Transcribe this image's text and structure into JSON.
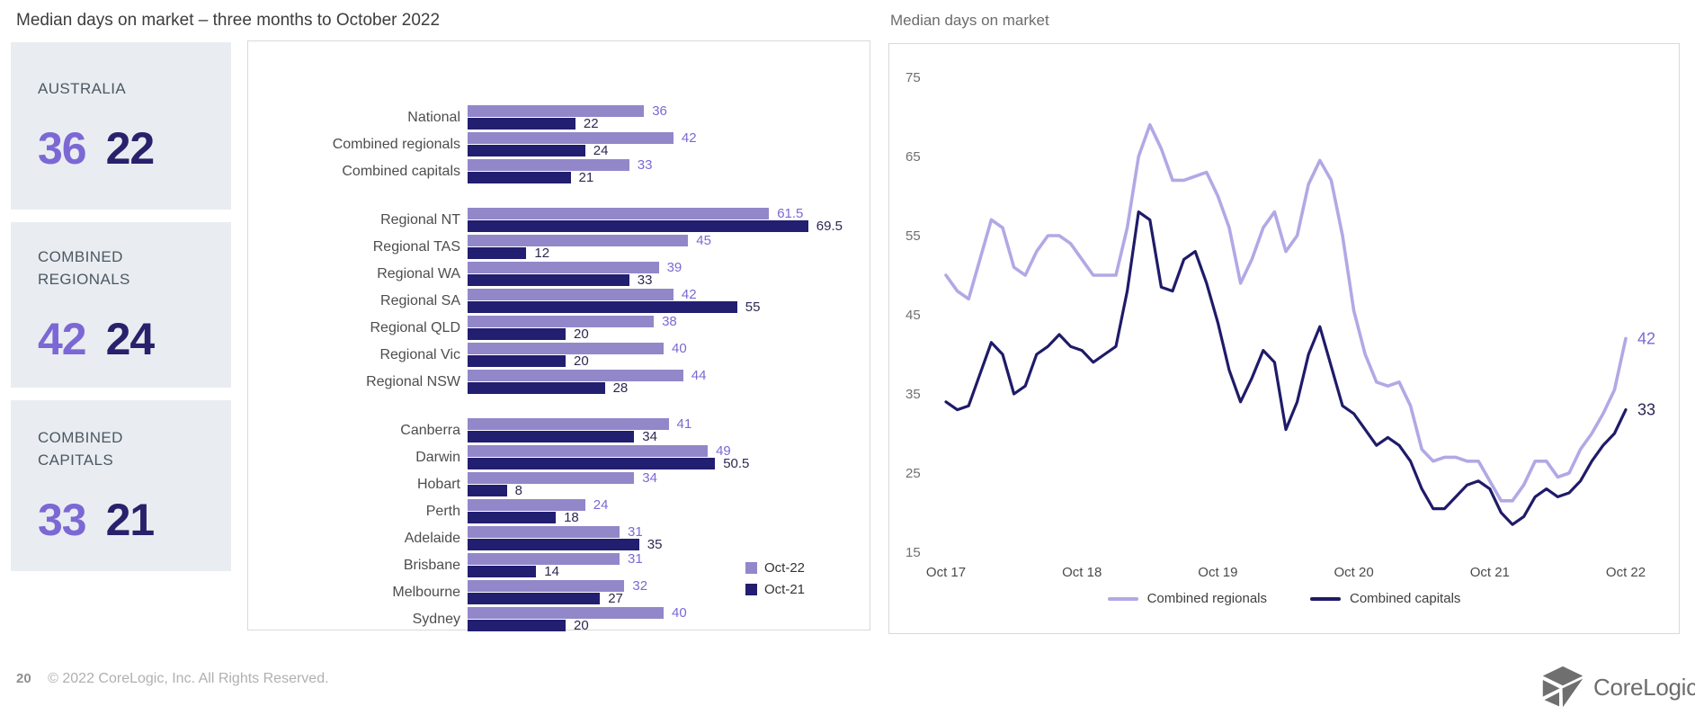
{
  "page": {
    "bar_section_title": "Median days on market – three months to October 2022",
    "line_section_title": "Median days on market",
    "footer_page_number": "20",
    "footer_copyright": "© 2022 CoreLogic, Inc. All Rights Reserved.",
    "logo_text": "CoreLogic",
    "logo_tm": "’"
  },
  "summary_cards": [
    {
      "label": "AUSTRALIA",
      "oct22": "36",
      "oct21": "22"
    },
    {
      "label": "COMBINED REGIONALS",
      "oct22": "42",
      "oct21": "24"
    },
    {
      "label": "COMBINED CAPITALS",
      "oct22": "33",
      "oct21": "21"
    }
  ],
  "colors": {
    "bar_oct22": "#9287c9",
    "bar_oct21": "#221e70",
    "line_regionals": "#b1a9e5",
    "line_capitals": "#1f1b69",
    "value_purple": "#7c68d4",
    "value_navy": "#2c2950",
    "card_bg": "#e9edf1",
    "card_num_purple": "#7c68d4",
    "card_num_navy": "#29216b"
  },
  "chart_data": [
    {
      "type": "bar",
      "orientation": "horizontal",
      "title": "Median days on market – three months to October 2022",
      "series_names": [
        "Oct-22",
        "Oct-21"
      ],
      "xlim": [
        0,
        75
      ],
      "grid": false,
      "legend_position": "right-bottom",
      "legend": [
        "Oct-22",
        "Oct-21"
      ],
      "groups": [
        {
          "rows": [
            {
              "label": "National",
              "oct22": 36,
              "oct21": 22
            },
            {
              "label": "Combined regionals",
              "oct22": 42,
              "oct21": 24
            },
            {
              "label": "Combined capitals",
              "oct22": 33,
              "oct21": 21
            }
          ]
        },
        {
          "rows": [
            {
              "label": "Regional NT",
              "oct22": 61.5,
              "oct21": 69.5
            },
            {
              "label": "Regional TAS",
              "oct22": 45,
              "oct21": 12
            },
            {
              "label": "Regional WA",
              "oct22": 39,
              "oct21": 33
            },
            {
              "label": "Regional SA",
              "oct22": 42,
              "oct21": 55
            },
            {
              "label": "Regional QLD",
              "oct22": 38,
              "oct21": 20
            },
            {
              "label": "Regional Vic",
              "oct22": 40,
              "oct21": 20
            },
            {
              "label": "Regional NSW",
              "oct22": 44,
              "oct21": 28
            }
          ]
        },
        {
          "rows": [
            {
              "label": "Canberra",
              "oct22": 41,
              "oct21": 34
            },
            {
              "label": "Darwin",
              "oct22": 49,
              "oct21": 50.5
            },
            {
              "label": "Hobart",
              "oct22": 34,
              "oct21": 8
            },
            {
              "label": "Perth",
              "oct22": 24,
              "oct21": 18
            },
            {
              "label": "Adelaide",
              "oct22": 31,
              "oct21": 35
            },
            {
              "label": "Brisbane",
              "oct22": 31,
              "oct21": 14
            },
            {
              "label": "Melbourne",
              "oct22": 32,
              "oct21": 27
            },
            {
              "label": "Sydney",
              "oct22": 40,
              "oct21": 20
            }
          ]
        }
      ]
    },
    {
      "type": "line",
      "title": "Median days on market",
      "x_tick_labels": [
        "Oct 17",
        "Oct 18",
        "Oct 19",
        "Oct 20",
        "Oct 21",
        "Oct 22"
      ],
      "x_monthly_start": "Oct 2017",
      "x_monthly_end": "Oct 2022",
      "y_ticks": [
        75,
        65,
        55,
        45,
        35,
        25,
        15
      ],
      "ylim": [
        15,
        75
      ],
      "grid": false,
      "legend_position": "bottom",
      "series": [
        {
          "name": "Combined regionals",
          "color": "#b1a9e5",
          "end_label": 42,
          "values": [
            50,
            48,
            47,
            52,
            57,
            56,
            51,
            50,
            53,
            55,
            55,
            54,
            52,
            50,
            50,
            50,
            56,
            65,
            69,
            66,
            62,
            62,
            62.5,
            63,
            60,
            56,
            49,
            52,
            56,
            58,
            53,
            55,
            61.5,
            64.5,
            62,
            55,
            45.5,
            40,
            36.5,
            36,
            36.5,
            33.5,
            28,
            26.5,
            27,
            27,
            26.5,
            26.5,
            24,
            21.5,
            21.5,
            23.5,
            26.5,
            26.5,
            24.5,
            25,
            28,
            30,
            32.5,
            35.5,
            42
          ]
        },
        {
          "name": "Combined capitals",
          "color": "#1f1b69",
          "end_label": 33,
          "values": [
            34,
            33,
            33.5,
            37.5,
            41.5,
            40,
            35,
            36,
            40,
            41,
            42.5,
            41,
            40.5,
            39,
            40,
            41,
            48,
            58,
            57,
            48.5,
            48,
            52,
            53,
            49,
            44,
            38,
            34,
            37,
            40.5,
            39,
            30.5,
            34,
            40,
            43.5,
            38.5,
            33.5,
            32.5,
            30.5,
            28.5,
            29.5,
            28.5,
            26.5,
            23,
            20.5,
            20.5,
            22,
            23.5,
            24,
            23,
            20,
            18.5,
            19.5,
            22,
            23,
            22,
            22.5,
            24,
            26.5,
            28.5,
            30,
            33
          ]
        }
      ]
    }
  ]
}
